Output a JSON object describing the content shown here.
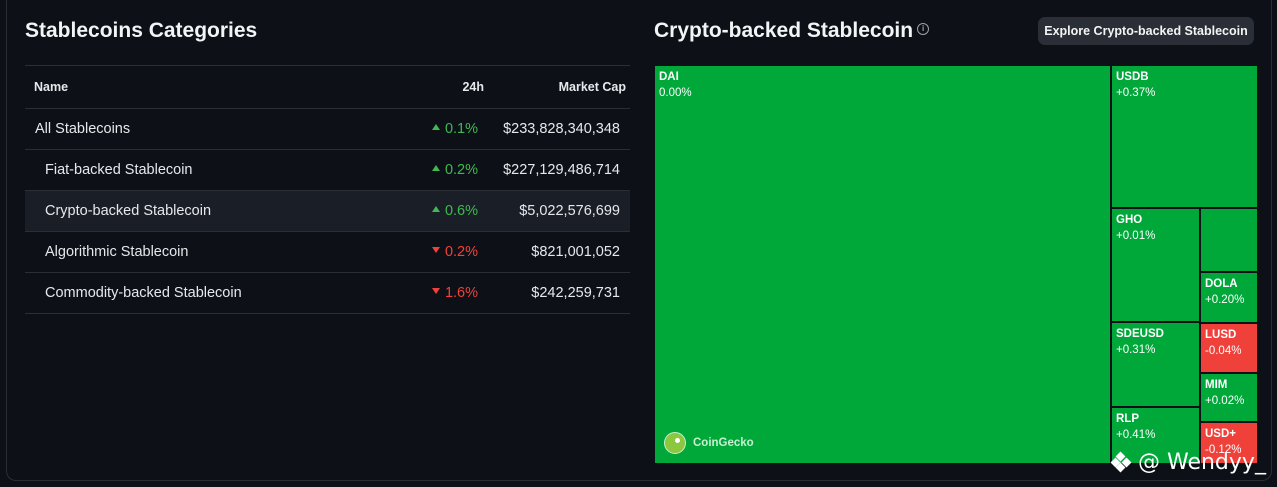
{
  "left_panel": {
    "title": "Stablecoins Categories",
    "columns": {
      "name": "Name",
      "change": "24h",
      "market_cap": "Market Cap"
    },
    "rows": [
      {
        "name": "All Stablecoins",
        "change": "0.1%",
        "direction": "up",
        "market_cap": "$233,828,340,348",
        "indent": false,
        "selected": false
      },
      {
        "name": "Fiat-backed Stablecoin",
        "change": "0.2%",
        "direction": "up",
        "market_cap": "$227,129,486,714",
        "indent": true,
        "selected": false
      },
      {
        "name": "Crypto-backed Stablecoin",
        "change": "0.6%",
        "direction": "up",
        "market_cap": "$5,022,576,699",
        "indent": true,
        "selected": true
      },
      {
        "name": "Algorithmic Stablecoin",
        "change": "0.2%",
        "direction": "down",
        "market_cap": "$821,001,052",
        "indent": true,
        "selected": false
      },
      {
        "name": "Commodity-backed Stablecoin",
        "change": "1.6%",
        "direction": "down",
        "market_cap": "$242,259,731",
        "indent": true,
        "selected": false
      }
    ]
  },
  "right_panel": {
    "title": "Crypto-backed Stablecoin",
    "info_icon": "info-icon",
    "explore_button": "Explore Crypto-backed Stablecoin",
    "brand": "CoinGecko",
    "treemap": [
      {
        "id": "dai",
        "name": "DAI",
        "change": "0.00%",
        "color": "green"
      },
      {
        "id": "usdb",
        "name": "USDB",
        "change": "+0.37%",
        "color": "green"
      },
      {
        "id": "gho",
        "name": "GHO",
        "change": "+0.01%",
        "color": "green"
      },
      {
        "id": "blank",
        "name": "",
        "change": "",
        "color": "green"
      },
      {
        "id": "dola",
        "name": "DOLA",
        "change": "+0.20%",
        "color": "green"
      },
      {
        "id": "sdeusd",
        "name": "SDEUSD",
        "change": "+0.31%",
        "color": "green"
      },
      {
        "id": "lusd",
        "name": "LUSD",
        "change": "-0.04%",
        "color": "red"
      },
      {
        "id": "mim",
        "name": "MIM",
        "change": "+0.02%",
        "color": "green"
      },
      {
        "id": "rlp",
        "name": "RLP",
        "change": "+0.41%",
        "color": "green"
      },
      {
        "id": "usdplus",
        "name": "USD+",
        "change": "-0.12%",
        "color": "red"
      }
    ]
  },
  "colors": {
    "up": "#3fb950",
    "down": "#f2403a",
    "tile_green": "#00a83a",
    "tile_red": "#f0403a"
  },
  "watermark": "@ Wendyy_"
}
